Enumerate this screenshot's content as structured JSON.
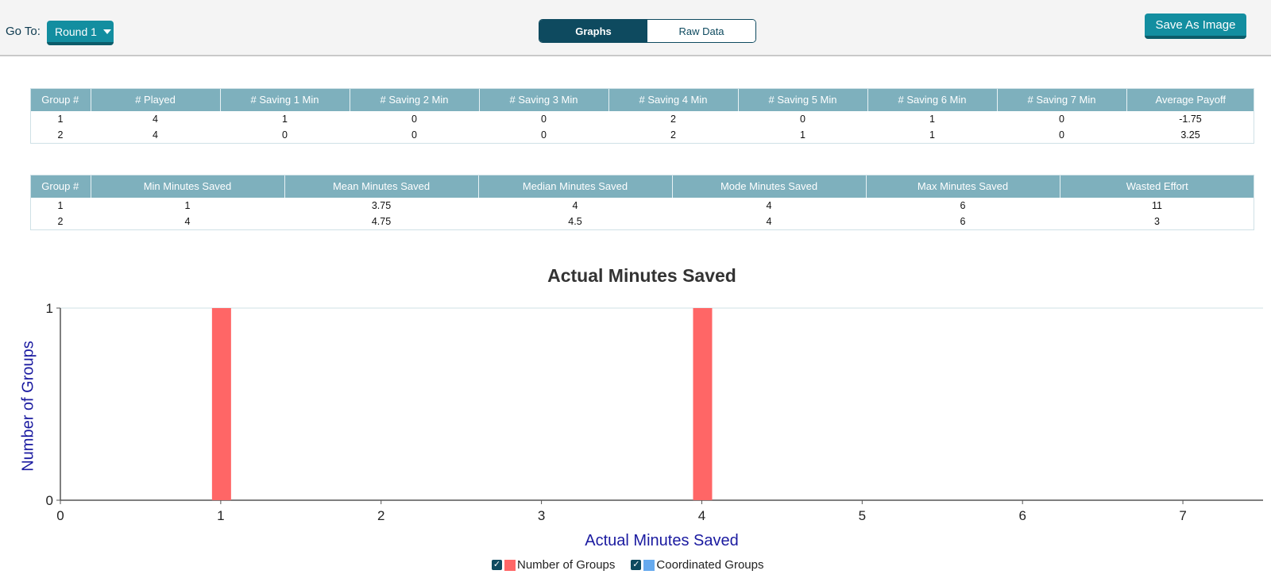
{
  "toolbar": {
    "goto_label": "Go To:",
    "round_selected": "Round 1",
    "tabs": [
      {
        "label": "Graphs",
        "active": true
      },
      {
        "label": "Raw Data",
        "active": false
      }
    ],
    "save_label": "Save As Image"
  },
  "table1": {
    "headers": [
      "Group #",
      "# Played",
      "# Saving 1 Min",
      "# Saving 2 Min",
      "# Saving 3 Min",
      "# Saving 4 Min",
      "# Saving 5 Min",
      "# Saving 6 Min",
      "# Saving 7 Min",
      "Average Payoff"
    ],
    "rows": [
      [
        "1",
        "4",
        "1",
        "0",
        "0",
        "2",
        "0",
        "1",
        "0",
        "-1.75"
      ],
      [
        "2",
        "4",
        "0",
        "0",
        "0",
        "2",
        "1",
        "1",
        "0",
        "3.25"
      ]
    ]
  },
  "table2": {
    "headers": [
      "Group #",
      "Min Minutes Saved",
      "Mean Minutes Saved",
      "Median Minutes Saved",
      "Mode Minutes Saved",
      "Max Minutes Saved",
      "Wasted Effort"
    ],
    "rows": [
      [
        "1",
        "1",
        "3.75",
        "4",
        "4",
        "6",
        "11"
      ],
      [
        "2",
        "4",
        "4.75",
        "4.5",
        "4",
        "6",
        "3"
      ]
    ]
  },
  "chart_data": {
    "type": "bar",
    "title": "Actual Minutes Saved",
    "xlabel": "Actual Minutes Saved",
    "ylabel": "Number of Groups",
    "xlim": [
      0,
      7.5
    ],
    "ylim": [
      0,
      1
    ],
    "x_ticks": [
      0,
      1,
      2,
      3,
      4,
      5,
      6,
      7
    ],
    "y_ticks": [
      0,
      1
    ],
    "grid": false,
    "legend_position": "bottom-center",
    "series": [
      {
        "name": "Number of Groups",
        "color": "#ff6666",
        "checked": true,
        "points": [
          {
            "x": 1,
            "y": 1
          },
          {
            "x": 4,
            "y": 1
          }
        ]
      },
      {
        "name": "Coordinated Groups",
        "color": "#66aaee",
        "checked": true,
        "points": []
      }
    ]
  }
}
